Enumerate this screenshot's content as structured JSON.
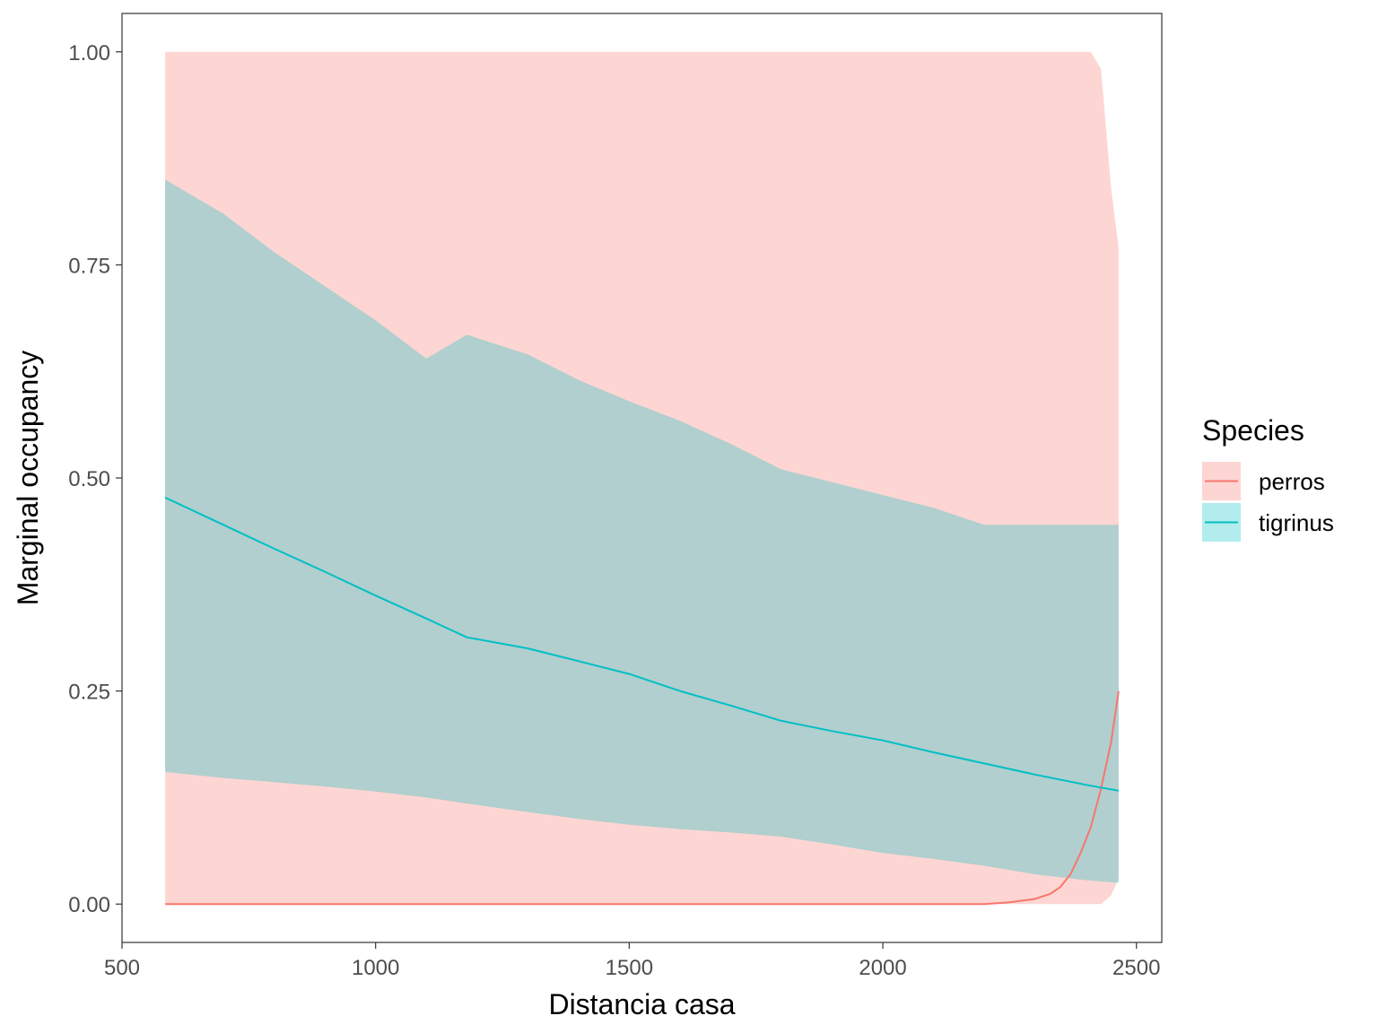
{
  "chart_data": {
    "type": "line",
    "xlabel": "Distancia casa",
    "ylabel": "Marginal occupancy",
    "xlim": [
      500,
      2550
    ],
    "ylim": [
      -0.045,
      1.045
    ],
    "x_ticks": [
      500,
      1000,
      1500,
      2000,
      2500
    ],
    "x_tick_labels": [
      "500",
      "1000",
      "1500",
      "2000",
      "2500"
    ],
    "y_ticks": [
      0,
      0.25,
      0.5,
      0.75,
      1.0
    ],
    "y_tick_labels": [
      "0.00",
      "0.25",
      "0.50",
      "0.75",
      "1.00"
    ],
    "grid": false,
    "legend": {
      "title": "Species",
      "position": "right"
    },
    "series": [
      {
        "name": "perros",
        "color": "#F8766D",
        "ribbon_color": "#F8766D",
        "x": [
          585,
          800,
          1000,
          1200,
          1400,
          1600,
          1800,
          2000,
          2200,
          2250,
          2300,
          2330,
          2350,
          2370,
          2390,
          2410,
          2430,
          2450,
          2465
        ],
        "y": [
          0,
          0,
          0,
          0,
          0,
          0,
          0,
          0,
          0,
          0.002,
          0.006,
          0.012,
          0.02,
          0.035,
          0.06,
          0.09,
          0.135,
          0.19,
          0.25
        ],
        "lower": [
          0,
          0,
          0,
          0,
          0,
          0,
          0,
          0,
          0,
          0,
          0,
          0,
          0,
          0,
          0,
          0,
          0,
          0.01,
          0.03
        ],
        "upper": [
          1,
          1,
          1,
          1,
          1,
          1,
          1,
          1,
          1,
          1,
          1,
          1,
          1,
          1,
          1,
          1,
          0.98,
          0.84,
          0.77
        ]
      },
      {
        "name": "tigrinus",
        "color": "#00BFC4",
        "ribbon_color": "#00BFC4",
        "x": [
          585,
          700,
          800,
          900,
          1000,
          1100,
          1180,
          1300,
          1400,
          1500,
          1600,
          1700,
          1800,
          1900,
          2000,
          2100,
          2200,
          2300,
          2400,
          2465
        ],
        "y": [
          0.477,
          0.445,
          0.417,
          0.39,
          0.362,
          0.335,
          0.313,
          0.3,
          0.285,
          0.27,
          0.25,
          0.233,
          0.215,
          0.203,
          0.192,
          0.178,
          0.165,
          0.152,
          0.14,
          0.133
        ],
        "lower": [
          0.155,
          0.148,
          0.143,
          0.138,
          0.132,
          0.125,
          0.118,
          0.108,
          0.1,
          0.093,
          0.088,
          0.084,
          0.079,
          0.07,
          0.06,
          0.053,
          0.045,
          0.035,
          0.028,
          0.025
        ],
        "upper": [
          0.85,
          0.81,
          0.765,
          0.725,
          0.685,
          0.64,
          0.668,
          0.645,
          0.615,
          0.59,
          0.567,
          0.54,
          0.51,
          0.495,
          0.48,
          0.465,
          0.445,
          0.445,
          0.445,
          0.445
        ]
      }
    ]
  }
}
